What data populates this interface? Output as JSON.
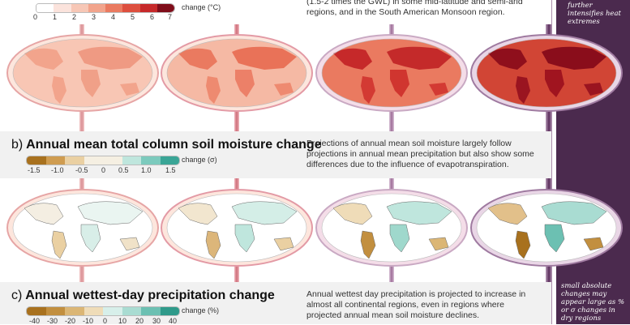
{
  "panel_a": {
    "colorbar_ticks": [
      "0",
      "1",
      "2",
      "3",
      "4",
      "5",
      "6",
      "7"
    ],
    "colorbar_unit": "change (°C)",
    "description": "(1.5-2 times the GWL) in some mid-latitude and semi-arid regions, and in the South American Monsoon region.",
    "colors": [
      "#fbe3dc",
      "#f7c7b6",
      "#f2a48c",
      "#ea7a60",
      "#dd4f3e",
      "#c6292a",
      "#9f1220"
    ]
  },
  "panel_b": {
    "letter": "b)",
    "title": "Annual mean total column soil moisture change",
    "colorbar_ticks": [
      "-1.5",
      "-1.0",
      "-0.5",
      "0",
      "0.5",
      "1.0",
      "1.5"
    ],
    "colorbar_unit": "change (σ)",
    "description": "Projections of annual mean soil moisture largely follow projections in annual mean precipitation but also show some differences due to the influence of evapotranspiration.",
    "colors": [
      "#a8711e",
      "#cf9c50",
      "#ead0a2",
      "#f5efe2",
      "#bfe6dd",
      "#7ccabd",
      "#3aa596"
    ]
  },
  "panel_c": {
    "letter": "c)",
    "title": "Annual wettest-day precipitation change",
    "colorbar_ticks": [
      "-40",
      "-30",
      "-20",
      "-10",
      "0",
      "10",
      "20",
      "30",
      "40"
    ],
    "colorbar_unit": "change (%)",
    "description": "Annual wettest day precipitation is projected to increase in almost all continental regions, even in regions where projected annual mean soil moisture declines.",
    "colors": [
      "#a8711e",
      "#c28f3f",
      "#dbb675",
      "#efdcb8",
      "#d7efea",
      "#a9dcd2",
      "#6cc0b2",
      "#2f9a8a"
    ]
  },
  "side_notes": {
    "top": "further intensifies heat extremes",
    "bottom": "small absolute changes may appear large as % or σ changes in dry regions"
  }
}
